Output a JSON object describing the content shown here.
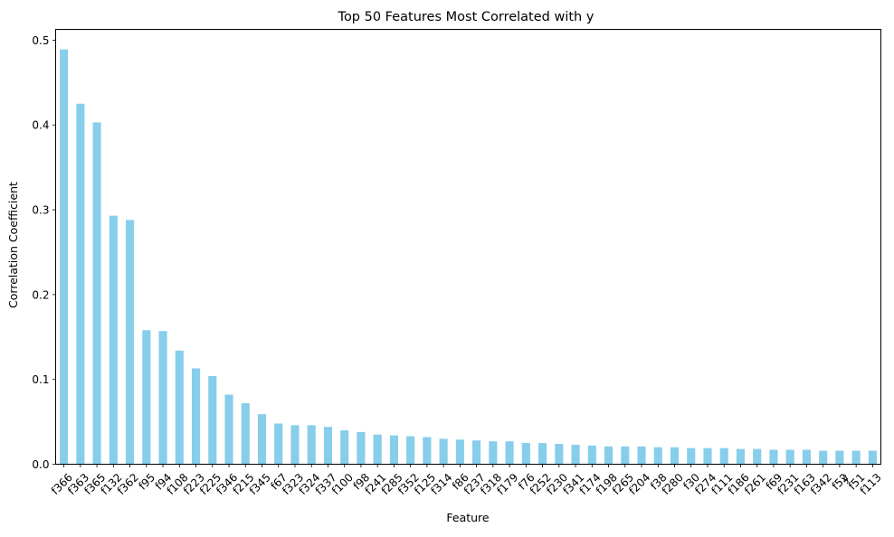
{
  "chart_data": {
    "type": "bar",
    "title": "Top 50 Features Most Correlated with y",
    "xlabel": "Feature",
    "ylabel": "Correlation Coefficient",
    "ylim": [
      0,
      0.5127
    ],
    "yticks": [
      0.0,
      0.1,
      0.2,
      0.3,
      0.4,
      0.5
    ],
    "ytick_labels": [
      "0.0",
      "0.1",
      "0.2",
      "0.3",
      "0.4",
      "0.5"
    ],
    "grid": false,
    "bar_color": "#87ceeb",
    "categories": [
      "f366",
      "f363",
      "f365",
      "f132",
      "f362",
      "f95",
      "f94",
      "f108",
      "f223",
      "f225",
      "f346",
      "f215",
      "f345",
      "f67",
      "f323",
      "f324",
      "f337",
      "f100",
      "f98",
      "f241",
      "f285",
      "f352",
      "f125",
      "f314",
      "f86",
      "f237",
      "f318",
      "f179",
      "f76",
      "f252",
      "f230",
      "f341",
      "f174",
      "f198",
      "f265",
      "f204",
      "f38",
      "f280",
      "f30",
      "f274",
      "f111",
      "f186",
      "f261",
      "f69",
      "f231",
      "f163",
      "f342",
      "f52",
      "f51",
      "f113"
    ],
    "values": [
      0.489,
      0.425,
      0.403,
      0.293,
      0.288,
      0.158,
      0.157,
      0.134,
      0.113,
      0.104,
      0.082,
      0.072,
      0.059,
      0.048,
      0.046,
      0.046,
      0.044,
      0.04,
      0.038,
      0.035,
      0.034,
      0.033,
      0.032,
      0.03,
      0.029,
      0.028,
      0.027,
      0.027,
      0.025,
      0.025,
      0.024,
      0.023,
      0.022,
      0.021,
      0.021,
      0.021,
      0.02,
      0.02,
      0.019,
      0.019,
      0.019,
      0.018,
      0.018,
      0.017,
      0.017,
      0.017,
      0.016,
      0.016,
      0.016,
      0.016
    ],
    "annotations": [
      {
        "text": "y"
      }
    ]
  }
}
